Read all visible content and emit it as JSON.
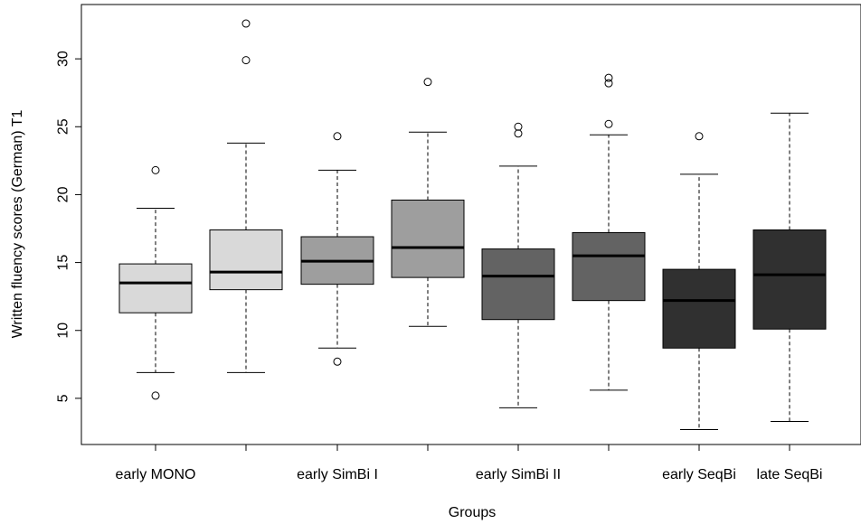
{
  "chart_data": {
    "type": "boxplot",
    "title": "",
    "xlabel": "Groups",
    "ylabel": "Written fluency scores (German) T1",
    "ylim": [
      1.6,
      34.0
    ],
    "yticks": [
      5,
      10,
      15,
      20,
      25,
      30
    ],
    "ytick_labels": [
      "5",
      "10",
      "15",
      "20",
      "25",
      "30"
    ],
    "category_labels": [
      "early MONO",
      "",
      "early SimBi I",
      "",
      "early SimBi II",
      "",
      "early SeqBi",
      "late SeqBi"
    ],
    "boxes": [
      {
        "whisker_low": 6.9,
        "q1": 11.3,
        "median": 13.5,
        "q3": 14.9,
        "whisker_high": 19.0,
        "outliers": [
          5.2,
          21.8
        ],
        "fill": "#d9d9d9"
      },
      {
        "whisker_low": 6.9,
        "q1": 13.0,
        "median": 14.3,
        "q3": 17.4,
        "whisker_high": 23.8,
        "outliers": [
          29.9,
          32.6
        ],
        "fill": "#d9d9d9"
      },
      {
        "whisker_low": 8.7,
        "q1": 13.4,
        "median": 15.1,
        "q3": 16.9,
        "whisker_high": 21.8,
        "outliers": [
          7.7,
          24.3
        ],
        "fill": "#9e9e9e"
      },
      {
        "whisker_low": 10.3,
        "q1": 13.9,
        "median": 16.1,
        "q3": 19.6,
        "whisker_high": 24.6,
        "outliers": [
          28.3
        ],
        "fill": "#9e9e9e"
      },
      {
        "whisker_low": 4.3,
        "q1": 10.8,
        "median": 14.0,
        "q3": 16.0,
        "whisker_high": 22.1,
        "outliers": [
          24.5,
          25.0
        ],
        "fill": "#636363"
      },
      {
        "whisker_low": 5.6,
        "q1": 12.2,
        "median": 15.5,
        "q3": 17.2,
        "whisker_high": 24.4,
        "outliers": [
          25.2,
          28.2,
          28.6
        ],
        "fill": "#636363"
      },
      {
        "whisker_low": 2.7,
        "q1": 8.7,
        "median": 12.2,
        "q3": 14.5,
        "whisker_high": 21.5,
        "outliers": [
          24.3
        ],
        "fill": "#303030"
      },
      {
        "whisker_low": 3.3,
        "q1": 10.1,
        "median": 14.1,
        "q3": 17.4,
        "whisker_high": 26.0,
        "outliers": [],
        "fill": "#303030"
      }
    ]
  }
}
